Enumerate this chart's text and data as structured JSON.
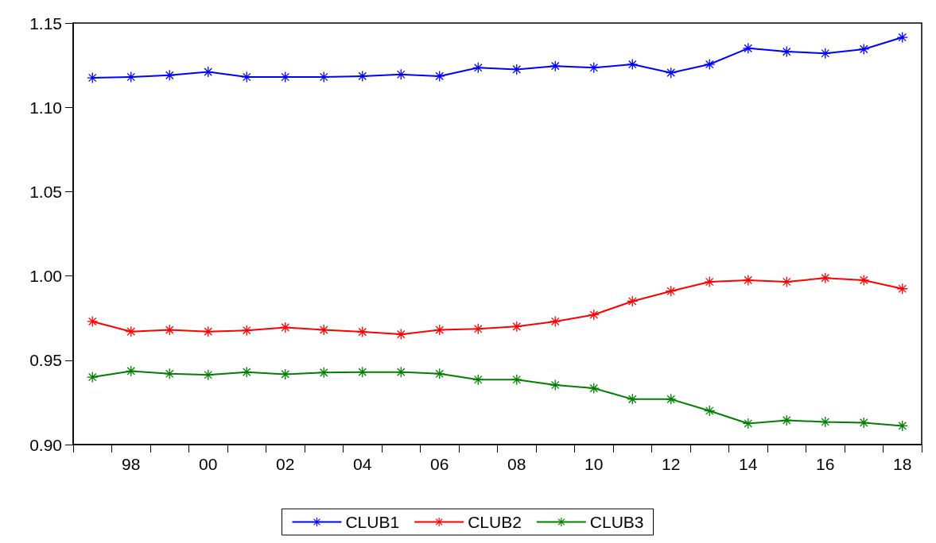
{
  "chart_data": {
    "type": "line",
    "categories": [
      null,
      "98",
      null,
      "00",
      null,
      "02",
      null,
      "04",
      null,
      "06",
      null,
      "08",
      null,
      "10",
      null,
      "12",
      null,
      "14",
      null,
      "16",
      null,
      "18"
    ],
    "series": [
      {
        "name": "CLUB1",
        "color": "#0000ff",
        "values": [
          1.1175,
          1.118,
          1.119,
          1.121,
          1.118,
          1.118,
          1.118,
          1.1185,
          1.1195,
          1.1185,
          1.1235,
          1.1225,
          1.1245,
          1.1235,
          1.1255,
          1.1205,
          1.1255,
          1.135,
          1.133,
          1.132,
          1.1345,
          1.1415
        ]
      },
      {
        "name": "CLUB2",
        "color": "#ff0000",
        "values": [
          0.973,
          0.967,
          0.968,
          0.967,
          0.9677,
          0.9695,
          0.968,
          0.9668,
          0.9654,
          0.968,
          0.9686,
          0.97,
          0.973,
          0.977,
          0.985,
          0.991,
          0.9965,
          0.9975,
          0.9965,
          0.9988,
          0.9975,
          0.9924
        ]
      },
      {
        "name": "CLUB3",
        "color": "#008000",
        "values": [
          0.94,
          0.9436,
          0.942,
          0.9413,
          0.943,
          0.9417,
          0.9427,
          0.943,
          0.943,
          0.942,
          0.9385,
          0.9385,
          0.9353,
          0.9334,
          0.9269,
          0.9269,
          0.92,
          0.9125,
          0.9144,
          0.9134,
          0.913,
          0.9111
        ]
      }
    ],
    "ylim": [
      0.9,
      1.15
    ],
    "yticks": [
      {
        "value": 0.9,
        "label": "0.90"
      },
      0.95,
      {
        "value": 1.0,
        "label": "1.00"
      },
      1.05,
      {
        "value": 1.1,
        "label": "1.10"
      },
      1.15
    ],
    "grid": false,
    "legend": "bottom",
    "marker": "star",
    "line_style": "solid"
  }
}
